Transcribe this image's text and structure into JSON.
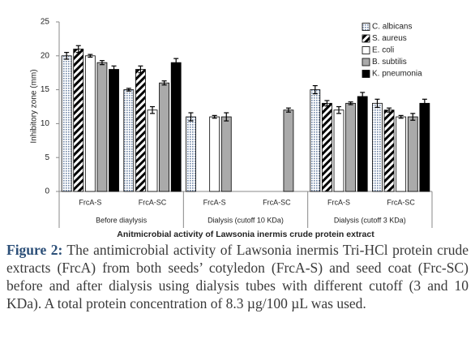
{
  "chart_data": {
    "type": "bar",
    "title": "Anitmicrobial activity of Lawsonia inermis crude protein extract",
    "y_label": "Inhibitory zone (mm)",
    "categories": [
      "FrcA-S",
      "FrcA-SC",
      "FrcA-S",
      "FrcA-SC",
      "FrcA-S",
      "FrcA-SC"
    ],
    "groups": [
      "Before diaylysis",
      "Dialysis (cutoff 10 KDa)",
      "Dialysis (cutoff 3 KDa)"
    ],
    "series": [
      {
        "name": "C. albicans",
        "color": "#6f86a8",
        "pattern": "dots",
        "values": [
          20,
          15,
          11,
          null,
          15,
          13
        ],
        "errors": [
          0.5,
          0.2,
          0.6,
          null,
          0.6,
          0.6
        ]
      },
      {
        "name": "S. aureus",
        "color": "#000000",
        "pattern": "diagonal",
        "values": [
          21,
          18,
          null,
          null,
          13,
          12
        ],
        "errors": [
          0.5,
          0.5,
          null,
          null,
          0.4,
          0.3
        ]
      },
      {
        "name": "E. coli",
        "color": "#ffffff",
        "pattern": "none",
        "values": [
          20,
          12,
          11,
          null,
          12,
          11
        ],
        "errors": [
          0.2,
          0.5,
          0.2,
          null,
          0.5,
          0.2
        ]
      },
      {
        "name": "B. subtilis",
        "color": "#aaaaaa",
        "pattern": "none",
        "values": [
          19,
          16,
          11,
          12,
          13,
          11
        ],
        "errors": [
          0.3,
          0.3,
          0.6,
          0.3,
          0.2,
          0.5
        ]
      },
      {
        "name": "K. pneumonia",
        "color": "#000000",
        "pattern": "none",
        "values": [
          18,
          19,
          null,
          null,
          14,
          13
        ],
        "errors": [
          0.5,
          0.6,
          null,
          null,
          0.6,
          0.6
        ]
      }
    ],
    "ylim": [
      0,
      25
    ],
    "yticks": [
      0,
      5,
      10,
      15,
      20,
      25
    ],
    "grid": false,
    "legend": "upper-right"
  },
  "caption": {
    "label": "Figure 2:",
    "text": "The antimicrobial activity of Lawsonia inermis Tri-HCl protein crude extracts (FrcA) from both seeds’ cotyledon (FrcA-S) and seed coat (Frc-SC) before and after dialysis using dialysis tubes with different cutoff (3 and 10 KDa). A total protein concentration of 8.3 µg/100 µL was used."
  }
}
